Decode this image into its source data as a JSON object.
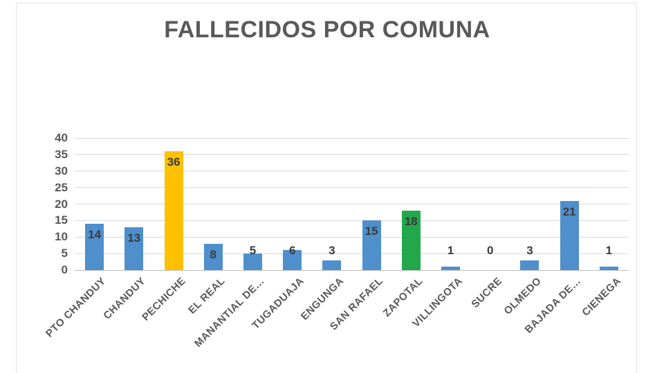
{
  "chart_data": {
    "type": "bar",
    "title": "FALLECIDOS POR COMUNA",
    "categories": [
      "PTO CHANDUY",
      "CHANDUY",
      "PECHICHE",
      "EL REAL",
      "MANANTIAL DE…",
      "TUGADUAJA",
      "ENGUNGA",
      "SAN RAFAEL",
      "ZAPOTAL",
      "VILLINGOTA",
      "SUCRE",
      "OLMEDO",
      "BAJADA DE…",
      "CIENEGA"
    ],
    "values": [
      14,
      13,
      36,
      8,
      5,
      6,
      3,
      15,
      18,
      1,
      0,
      3,
      21,
      1
    ],
    "bar_colors": [
      "#4E8FCC",
      "#4E8FCC",
      "#FFC000",
      "#4E8FCC",
      "#4E8FCC",
      "#4E8FCC",
      "#4E8FCC",
      "#4E8FCC",
      "#22A84B",
      "#4E8FCC",
      "#4E8FCC",
      "#4E8FCC",
      "#4E8FCC",
      "#4E8FCC"
    ],
    "xlabel": "",
    "ylabel": "",
    "ylim": [
      0,
      40
    ],
    "yticks": [
      0,
      5,
      10,
      15,
      20,
      25,
      30,
      35,
      40
    ],
    "grid": true,
    "legend_position": "none",
    "data_labels_shown": true,
    "colors": {
      "bar_default": "#4E8FCC",
      "bar_highlight_yellow": "#FFC000",
      "bar_highlight_green": "#22A84B",
      "title_text": "#595959",
      "axis_text": "#595959",
      "data_label_text": "#3B3B3B",
      "gridline": "#D9D9D9",
      "axis_line": "#BFBFBF",
      "chart_border": "#E2E2E2",
      "background": "#FFFFFF"
    }
  }
}
